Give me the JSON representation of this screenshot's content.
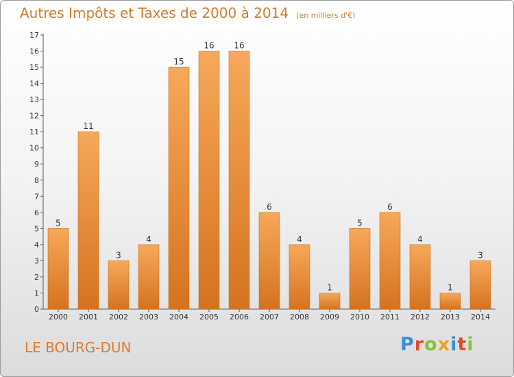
{
  "header": {
    "title": "Autres Impôts et Taxes de 2000 à 2014",
    "unit": "(en milliers d'€)"
  },
  "footer": {
    "city": "LE BOURG-DUN",
    "logo": "Proxiti"
  },
  "colors": {
    "bar_light": "#f7a85a",
    "bar_dark": "#d4731f",
    "title": "#d07a2a"
  },
  "chart_data": {
    "type": "bar",
    "title": "Autres Impôts et Taxes de 2000 à 2014",
    "subtitle": "(en milliers d'€)",
    "categories": [
      "2000",
      "2001",
      "2002",
      "2003",
      "2004",
      "2005",
      "2006",
      "2007",
      "2008",
      "2009",
      "2010",
      "2011",
      "2012",
      "2013",
      "2014"
    ],
    "values": [
      5,
      11,
      3,
      4,
      15,
      16,
      16,
      6,
      4,
      1,
      5,
      6,
      4,
      1,
      3
    ],
    "ylim": [
      0,
      17
    ],
    "yticks": [
      0,
      1,
      2,
      3,
      4,
      5,
      6,
      7,
      8,
      9,
      10,
      11,
      12,
      13,
      14,
      15,
      16,
      17
    ],
    "grid": false,
    "data_labels": true
  }
}
